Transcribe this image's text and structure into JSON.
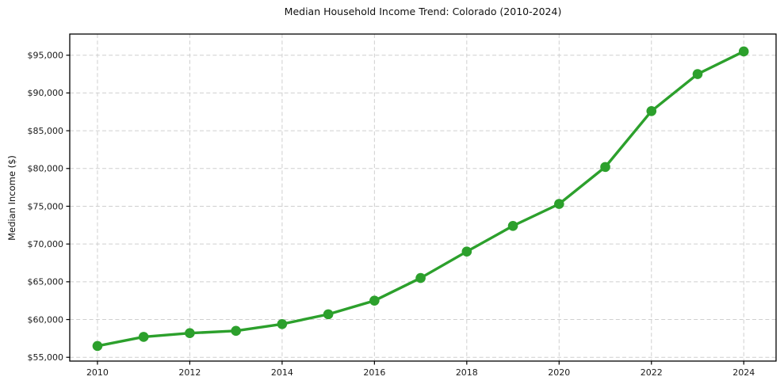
{
  "chart_data": {
    "type": "line",
    "title": "Median Household Income Trend: Colorado (2010-2024)",
    "ylabel": "Median Income ($)",
    "xlabel": "",
    "x": [
      2010,
      2011,
      2012,
      2013,
      2014,
      2015,
      2016,
      2017,
      2018,
      2019,
      2020,
      2021,
      2022,
      2023,
      2024
    ],
    "series": [
      {
        "name": "Median Household Income",
        "values": [
          56500,
          57700,
          58200,
          58500,
          59400,
          60700,
          62500,
          65500,
          69000,
          72400,
          75300,
          80200,
          87600,
          92500,
          95500
        ]
      }
    ],
    "x_ticks": [
      2010,
      2012,
      2014,
      2016,
      2018,
      2020,
      2022,
      2024
    ],
    "x_tick_labels": [
      "2010",
      "2012",
      "2014",
      "2016",
      "2018",
      "2020",
      "2022",
      "2024"
    ],
    "y_ticks": [
      55000,
      60000,
      65000,
      70000,
      75000,
      80000,
      85000,
      90000,
      95000
    ],
    "y_tick_labels": [
      "$55,000",
      "$60,000",
      "$65,000",
      "$70,000",
      "$75,000",
      "$80,000",
      "$85,000",
      "$90,000",
      "$95,000"
    ],
    "xlim": [
      2009.4,
      2024.7
    ],
    "ylim": [
      54500,
      97800
    ],
    "grid": true,
    "grid_style": "dashed",
    "legend": "none",
    "marker": "circle",
    "line_color": "#2ca02c",
    "grid_color": "#cfcfcf",
    "spine_color": "#000000"
  }
}
